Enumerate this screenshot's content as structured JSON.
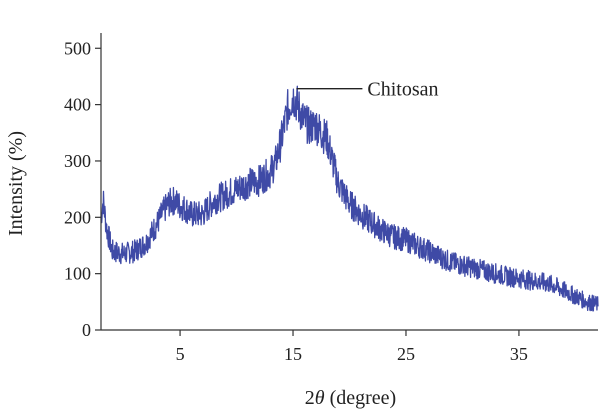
{
  "chart_data": {
    "type": "line",
    "xlabel": "2θ (degree)",
    "xlabel_prefix": "2",
    "xlabel_symbol": "θ",
    "xlabel_suffix": " (degree)",
    "ylabel": "Intensity (%)",
    "xlim": [
      -2,
      42
    ],
    "ylim": [
      0,
      520
    ],
    "x_ticks": [
      5,
      15,
      25,
      35
    ],
    "y_ticks": [
      0,
      100,
      200,
      300,
      400,
      500
    ],
    "grid": false,
    "annotations": [
      {
        "text": "Chitosan",
        "x": 15.3,
        "y": 430
      }
    ],
    "series": [
      {
        "color": "#3f4aa6",
        "x": [
          -2,
          -1.8,
          -1.5,
          -1.0,
          0,
          1,
          2,
          3,
          3.5,
          4,
          4.5,
          5,
          5.5,
          6,
          7,
          8,
          9,
          10,
          11,
          12,
          13,
          13.5,
          14,
          14.5,
          15,
          15.5,
          16,
          16.5,
          17,
          17.5,
          18,
          18.5,
          19,
          20,
          21,
          22,
          23,
          24,
          25,
          26,
          27,
          28,
          29,
          30,
          31,
          32,
          33,
          34,
          35,
          36,
          37,
          38,
          39,
          40,
          41,
          42
        ],
        "y": [
          200,
          230,
          180,
          140,
          135,
          140,
          155,
          190,
          210,
          225,
          230,
          220,
          215,
          205,
          205,
          230,
          240,
          250,
          260,
          265,
          280,
          300,
          340,
          390,
          415,
          395,
          370,
          360,
          365,
          350,
          340,
          300,
          260,
          225,
          205,
          190,
          175,
          165,
          160,
          150,
          140,
          130,
          120,
          115,
          110,
          105,
          100,
          95,
          92,
          88,
          85,
          80,
          70,
          60,
          50,
          45
        ]
      }
    ]
  }
}
